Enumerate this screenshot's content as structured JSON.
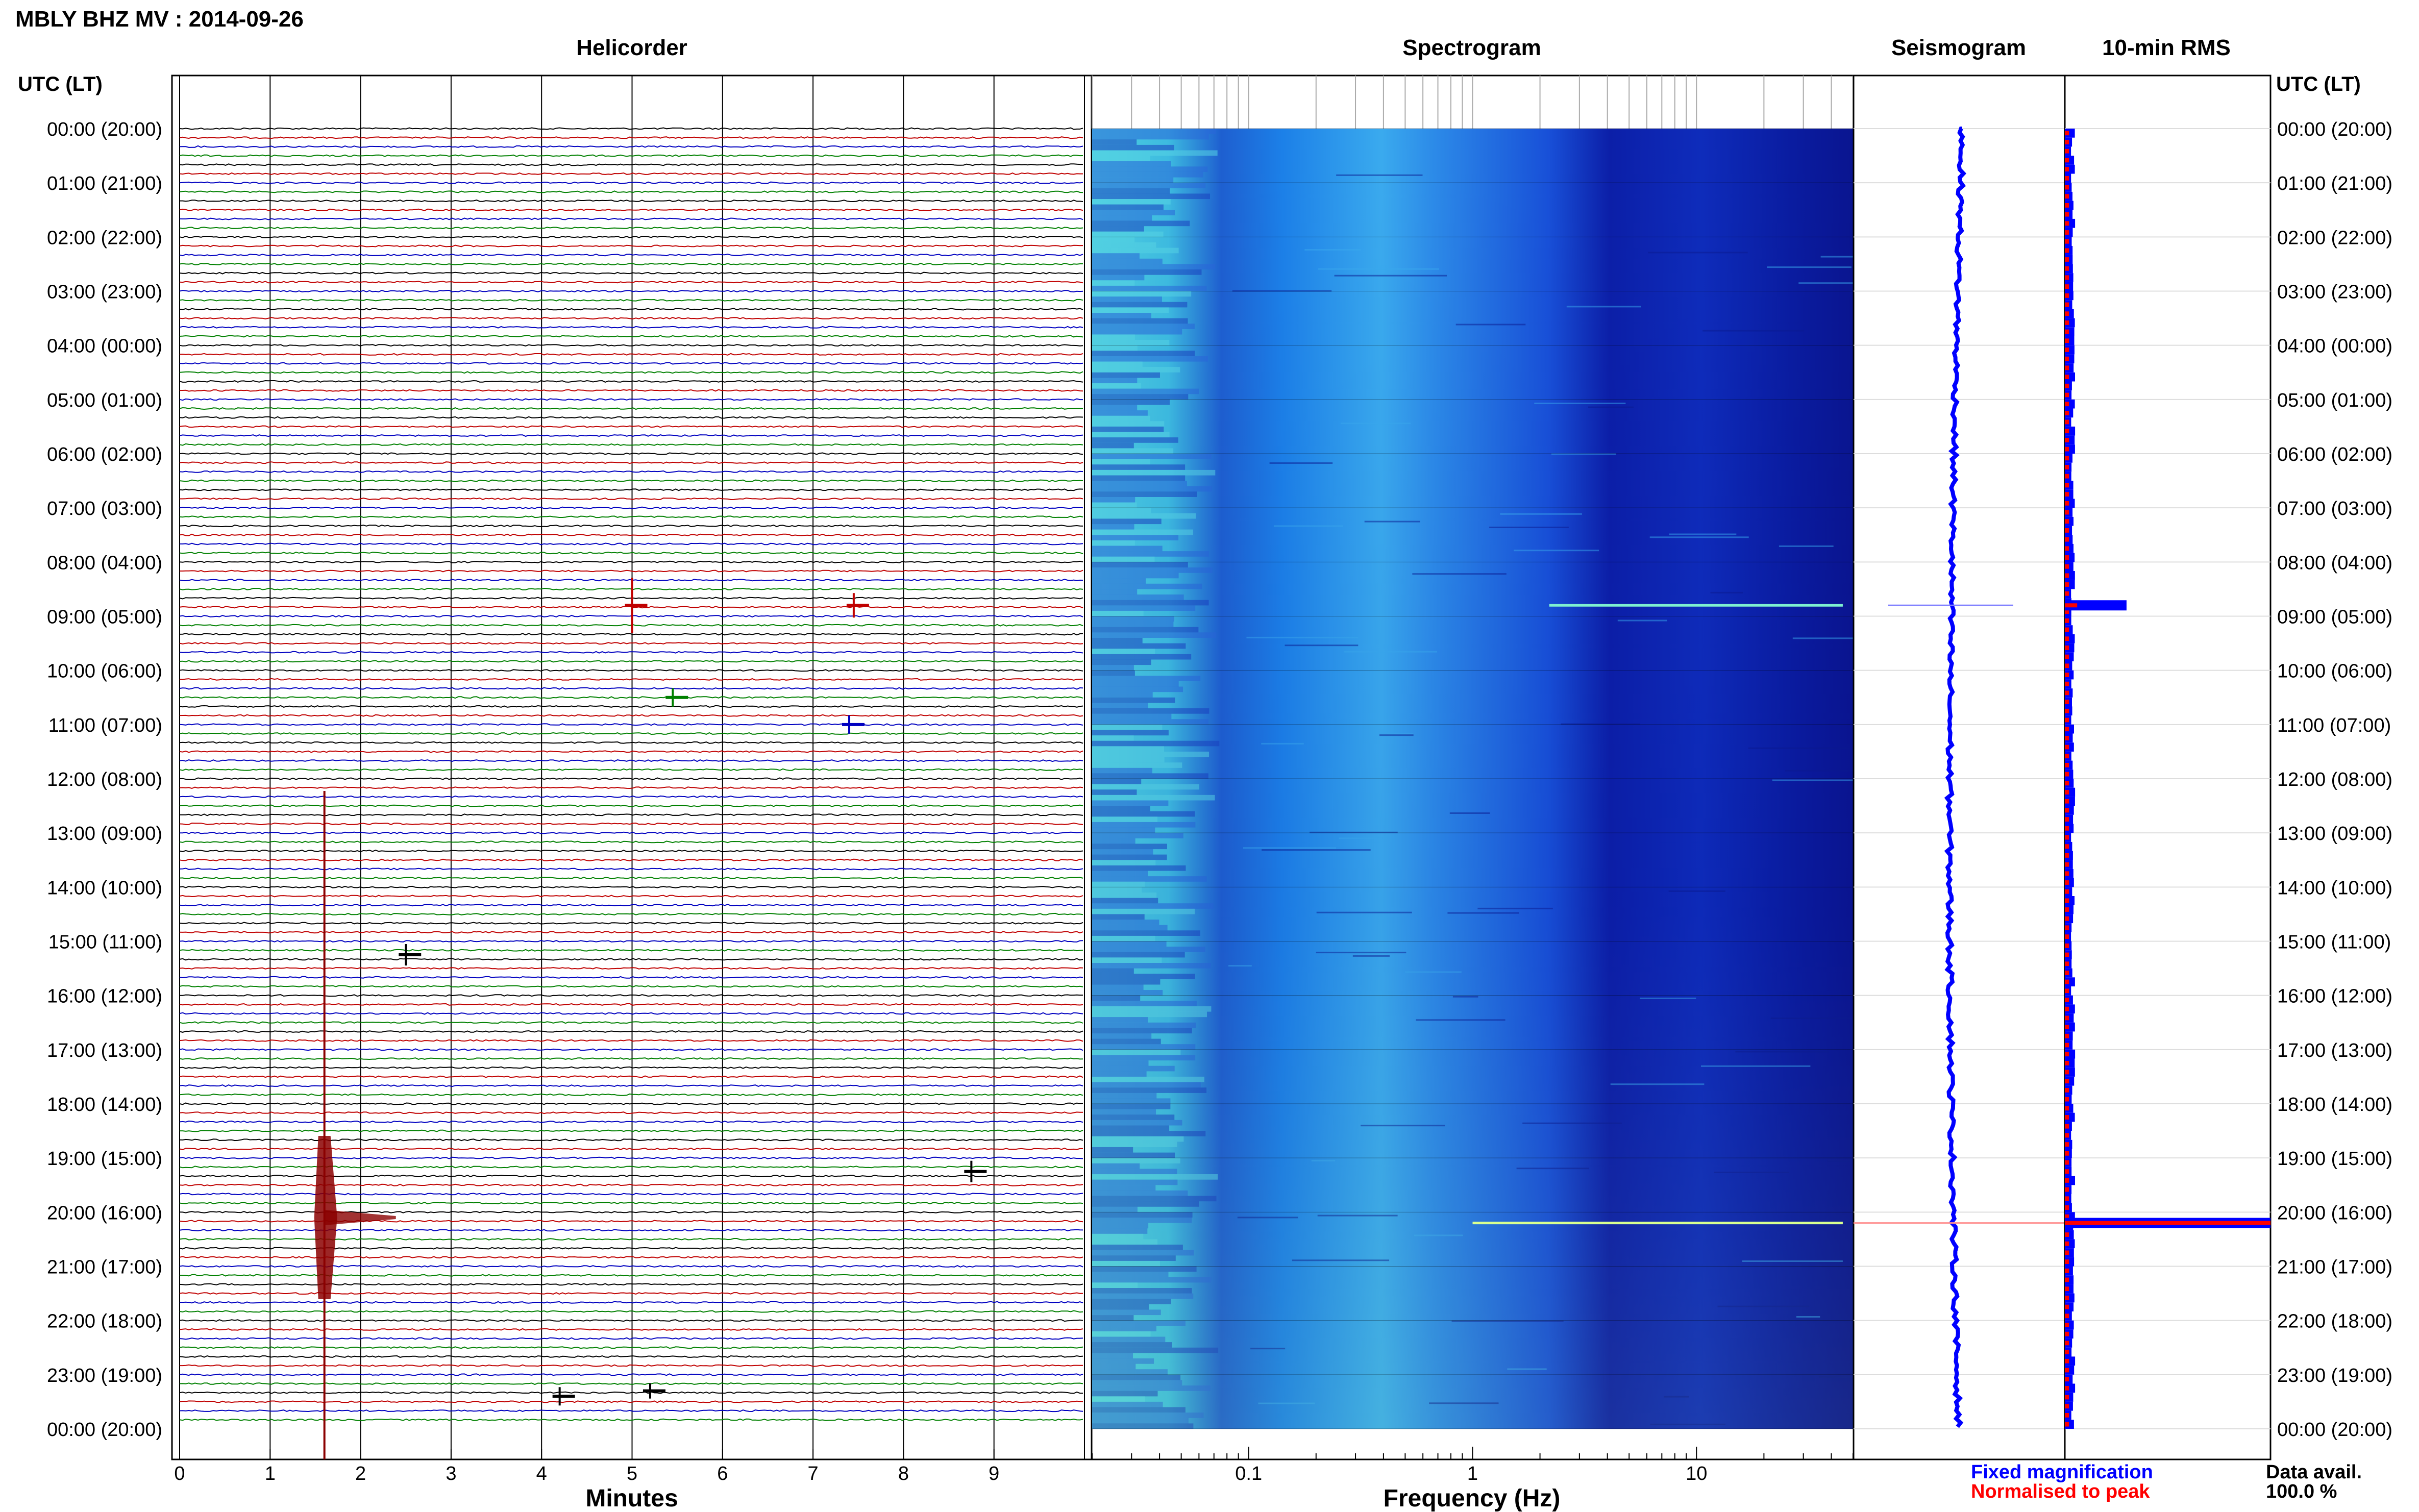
{
  "header": {
    "title": "MBLY BHZ MV : 2014-09-26"
  },
  "panels": {
    "helicorder": "Helicorder",
    "spectrogram": "Spectrogram",
    "seismogram": "Seismogram",
    "rms": "10-min RMS"
  },
  "axes": {
    "left_time_header": "UTC (LT)",
    "right_time_header": "UTC (LT)",
    "minutes_label": "Minutes",
    "frequency_label": "Frequency (Hz)"
  },
  "legend": {
    "fixed": "Fixed magnification",
    "normalised": "Normalised to peak",
    "avail_label": "Data avail.",
    "avail_value": "100.0 %"
  },
  "colors": {
    "trace_cycle": [
      "#000000",
      "#c00000",
      "#0000c0",
      "#008000"
    ],
    "fixed_color": "#0000ff",
    "normalised_color": "#ff0000"
  },
  "chart_data": {
    "type": "heatmap",
    "time_ticks": [
      "00:00 (20:00)",
      "01:00 (21:00)",
      "02:00 (22:00)",
      "03:00 (23:00)",
      "04:00 (00:00)",
      "05:00 (01:00)",
      "06:00 (02:00)",
      "07:00 (03:00)",
      "08:00 (04:00)",
      "09:00 (05:00)",
      "10:00 (06:00)",
      "11:00 (07:00)",
      "12:00 (08:00)",
      "13:00 (09:00)",
      "14:00 (10:00)",
      "15:00 (11:00)",
      "16:00 (12:00)",
      "17:00 (13:00)",
      "18:00 (14:00)",
      "19:00 (15:00)",
      "20:00 (16:00)",
      "21:00 (17:00)",
      "22:00 (18:00)",
      "23:00 (19:00)",
      "00:00 (20:00)"
    ],
    "minute_ticks": [
      "0",
      "1",
      "2",
      "3",
      "4",
      "5",
      "6",
      "7",
      "8",
      "9"
    ],
    "minutes_range": [
      0,
      10
    ],
    "trace_count": 144,
    "freq_ticks": [
      {
        "label": "0.1",
        "value": 0.1
      },
      {
        "label": "1",
        "value": 1
      },
      {
        "label": "10",
        "value": 10
      }
    ],
    "freq_range": [
      0.02,
      50
    ],
    "freq_scale": "log",
    "events": [
      {
        "hour": 8.8,
        "minute": 5.0,
        "amp": 0.9
      },
      {
        "hour": 8.8,
        "minute": 7.45,
        "amp": 0.4
      },
      {
        "hour": 10.5,
        "minute": 5.45,
        "amp": 0.3
      },
      {
        "hour": 11.0,
        "minute": 7.4,
        "amp": 0.3
      },
      {
        "hour": 15.25,
        "minute": 2.5,
        "amp": 0.35
      },
      {
        "hour": 19.25,
        "minute": 8.75,
        "amp": 0.35
      },
      {
        "hour": 20.1,
        "minute": 1.6,
        "amp": 6.0
      },
      {
        "hour": 23.4,
        "minute": 4.2,
        "amp": 0.3
      },
      {
        "hour": 23.3,
        "minute": 5.2,
        "amp": 0.25
      }
    ],
    "seismogram_spikes_hours": [
      8.8,
      20.2
    ],
    "rms_spikes": [
      {
        "hour": 8.8,
        "value": 0.3
      },
      {
        "hour": 20.2,
        "value": 1.0
      }
    ]
  }
}
